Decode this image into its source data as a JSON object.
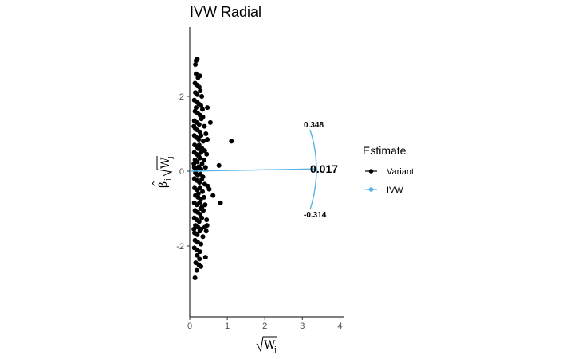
{
  "chart_data": {
    "type": "scatter",
    "title": "IVW Radial",
    "xlabel": "√W_j",
    "ylabel": "β̂_j √W_j",
    "xlim": [
      0,
      4.2
    ],
    "ylim": [
      -3.9,
      3.9
    ],
    "x_ticks": [
      "0",
      "1",
      "2",
      "3",
      "4"
    ],
    "y_ticks": [
      "2",
      "0",
      "-2"
    ],
    "grid": false,
    "legend": {
      "title": "Estimate",
      "position": "right",
      "entries": [
        "Variant",
        "IVW"
      ]
    },
    "colors": {
      "variant": "#000000",
      "ivw": "#56b4e9"
    },
    "ivw_estimate": {
      "label": "0.017",
      "value": 0.017
    },
    "ci_upper": {
      "label": "0.348",
      "value": 0.348
    },
    "ci_lower": {
      "label": "-0.314",
      "value": -0.314
    },
    "series": [
      {
        "name": "Variant",
        "points": [
          [
            0.17,
            2.95
          ],
          [
            0.2,
            3.0
          ],
          [
            0.15,
            2.85
          ],
          [
            0.17,
            2.6
          ],
          [
            0.22,
            2.5
          ],
          [
            0.27,
            2.55
          ],
          [
            0.14,
            2.35
          ],
          [
            0.2,
            2.3
          ],
          [
            0.25,
            2.25
          ],
          [
            0.15,
            2.1
          ],
          [
            0.2,
            2.05
          ],
          [
            0.28,
            2.15
          ],
          [
            0.32,
            2.0
          ],
          [
            0.12,
            1.9
          ],
          [
            0.18,
            1.85
          ],
          [
            0.24,
            1.8
          ],
          [
            0.3,
            1.75
          ],
          [
            0.47,
            1.7
          ],
          [
            0.14,
            1.6
          ],
          [
            0.21,
            1.55
          ],
          [
            0.27,
            1.5
          ],
          [
            0.35,
            1.45
          ],
          [
            0.12,
            1.35
          ],
          [
            0.19,
            1.3
          ],
          [
            0.25,
            1.25
          ],
          [
            0.31,
            1.4
          ],
          [
            0.39,
            1.2
          ],
          [
            0.55,
            1.3
          ],
          [
            0.14,
            1.15
          ],
          [
            0.2,
            1.1
          ],
          [
            0.27,
            1.05
          ],
          [
            0.43,
            1.0
          ],
          [
            0.12,
            0.95
          ],
          [
            0.18,
            0.9
          ],
          [
            0.24,
            0.85
          ],
          [
            0.3,
            0.95
          ],
          [
            0.36,
            0.8
          ],
          [
            0.47,
            0.85
          ],
          [
            1.11,
            0.8
          ],
          [
            0.13,
            0.7
          ],
          [
            0.19,
            0.65
          ],
          [
            0.25,
            0.7
          ],
          [
            0.33,
            0.6
          ],
          [
            0.4,
            0.55
          ],
          [
            0.12,
            0.5
          ],
          [
            0.18,
            0.45
          ],
          [
            0.24,
            0.4
          ],
          [
            0.3,
            0.5
          ],
          [
            0.45,
            0.45
          ],
          [
            0.14,
            0.3
          ],
          [
            0.2,
            0.25
          ],
          [
            0.27,
            0.35
          ],
          [
            0.33,
            0.2
          ],
          [
            0.38,
            0.3
          ],
          [
            0.78,
            0.15
          ],
          [
            0.12,
            0.1
          ],
          [
            0.18,
            0.08
          ],
          [
            0.24,
            0.12
          ],
          [
            0.3,
            0.05
          ],
          [
            0.42,
            0.1
          ],
          [
            0.15,
            -0.05
          ],
          [
            0.21,
            -0.1
          ],
          [
            0.28,
            -0.08
          ],
          [
            0.35,
            -0.15
          ],
          [
            0.12,
            -0.2
          ],
          [
            0.19,
            -0.25
          ],
          [
            0.26,
            -0.3
          ],
          [
            0.32,
            -0.22
          ],
          [
            0.4,
            -0.35
          ],
          [
            0.48,
            -0.4
          ],
          [
            0.13,
            -0.45
          ],
          [
            0.2,
            -0.5
          ],
          [
            0.27,
            -0.45
          ],
          [
            0.34,
            -0.55
          ],
          [
            0.52,
            -0.48
          ],
          [
            0.15,
            -0.65
          ],
          [
            0.22,
            -0.7
          ],
          [
            0.29,
            -0.75
          ],
          [
            0.62,
            -0.65
          ],
          [
            0.12,
            -0.85
          ],
          [
            0.19,
            -0.9
          ],
          [
            0.26,
            -0.85
          ],
          [
            0.33,
            -0.95
          ],
          [
            0.41,
            -0.9
          ],
          [
            0.82,
            -0.85
          ],
          [
            0.14,
            -1.05
          ],
          [
            0.21,
            -1.1
          ],
          [
            0.28,
            -1.15
          ],
          [
            0.36,
            -1.05
          ],
          [
            0.12,
            -1.25
          ],
          [
            0.18,
            -1.3
          ],
          [
            0.25,
            -1.35
          ],
          [
            0.32,
            -1.25
          ],
          [
            0.45,
            -1.3
          ],
          [
            0.15,
            -1.45
          ],
          [
            0.22,
            -1.5
          ],
          [
            0.3,
            -1.55
          ],
          [
            0.4,
            -1.5
          ],
          [
            0.46,
            -1.45
          ],
          [
            0.13,
            -1.65
          ],
          [
            0.2,
            -1.7
          ],
          [
            0.27,
            -1.6
          ],
          [
            0.35,
            -1.75
          ],
          [
            0.44,
            -1.6
          ],
          [
            0.14,
            -1.85
          ],
          [
            0.21,
            -1.9
          ],
          [
            0.3,
            -1.95
          ],
          [
            0.12,
            -2.05
          ],
          [
            0.19,
            -2.1
          ],
          [
            0.27,
            -2.15
          ],
          [
            0.2,
            -2.25
          ],
          [
            0.26,
            -2.35
          ],
          [
            0.42,
            -2.3
          ],
          [
            0.16,
            -2.45
          ],
          [
            0.24,
            -2.5
          ],
          [
            0.3,
            -2.55
          ],
          [
            0.19,
            -2.65
          ],
          [
            0.14,
            -2.85
          ],
          [
            0.16,
            0.0
          ],
          [
            0.22,
            0.6
          ],
          [
            0.17,
            1.7
          ],
          [
            0.23,
            -0.6
          ],
          [
            0.29,
            -1.0
          ],
          [
            0.11,
            -1.55
          ],
          [
            0.11,
            0.2
          ],
          [
            0.11,
            1.2
          ],
          [
            0.34,
            1.65
          ],
          [
            0.38,
            -0.7
          ]
        ]
      },
      {
        "name": "IVW",
        "line": [
          [
            0,
            0
          ],
          [
            3.4,
            0.06
          ]
        ]
      }
    ]
  }
}
